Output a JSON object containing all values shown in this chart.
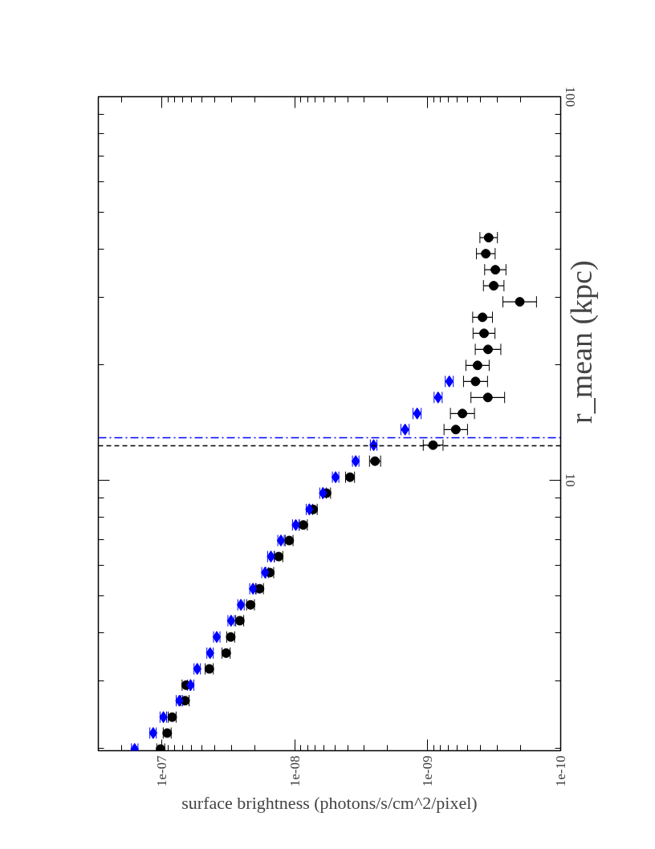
{
  "chart_data": {
    "type": "scatter",
    "xlabel": "surface brightness (photons/s/cm^2/pixel)",
    "ylabel": "r_mean (kpc)",
    "log": "xy",
    "grid": false,
    "xlim": [
      3e-07,
      1e-10
    ],
    "xticks": [
      {
        "value": 1e-07,
        "label": "1e-07"
      },
      {
        "value": 1e-08,
        "label": "1e-08"
      },
      {
        "value": 1e-09,
        "label": "1e-09"
      },
      {
        "value": 1e-10,
        "label": "1e-10"
      },
      {
        "value": 2e-07,
        "label": null
      },
      {
        "value": 3e-07,
        "label": null
      },
      {
        "value": 2e-08,
        "label": null
      },
      {
        "value": 3e-08,
        "label": null
      },
      {
        "value": 4e-08,
        "label": null
      },
      {
        "value": 5e-08,
        "label": null
      },
      {
        "value": 6e-08,
        "label": null
      },
      {
        "value": 7e-08,
        "label": null
      },
      {
        "value": 8e-08,
        "label": null
      },
      {
        "value": 9e-08,
        "label": null
      },
      {
        "value": 2e-09,
        "label": null
      },
      {
        "value": 3e-09,
        "label": null
      },
      {
        "value": 4e-09,
        "label": null
      },
      {
        "value": 5e-09,
        "label": null
      },
      {
        "value": 6e-09,
        "label": null
      },
      {
        "value": 7e-09,
        "label": null
      },
      {
        "value": 8e-09,
        "label": null
      },
      {
        "value": 9e-09,
        "label": null
      },
      {
        "value": 2e-10,
        "label": null
      },
      {
        "value": 3e-10,
        "label": null
      },
      {
        "value": 4e-10,
        "label": null
      },
      {
        "value": 5e-10,
        "label": null
      },
      {
        "value": 6e-10,
        "label": null
      },
      {
        "value": 7e-10,
        "label": null
      },
      {
        "value": 8e-10,
        "label": null
      },
      {
        "value": 9e-10,
        "label": null
      }
    ],
    "ylim": [
      1.97,
      100
    ],
    "yticks": [
      10,
      100,
      {
        "value": 2,
        "label": null
      },
      {
        "value": 3,
        "label": null
      },
      {
        "value": 4,
        "label": null
      },
      {
        "value": 5,
        "label": null
      },
      {
        "value": 6,
        "label": null
      },
      {
        "value": 7,
        "label": null
      },
      {
        "value": 8,
        "label": null
      },
      {
        "value": 9,
        "label": null
      },
      {
        "value": 20,
        "label": null
      },
      {
        "value": 30,
        "label": null
      },
      {
        "value": 40,
        "label": null
      },
      {
        "value": 50,
        "label": null
      },
      {
        "value": 60,
        "label": null
      },
      {
        "value": 70,
        "label": null
      },
      {
        "value": 80,
        "label": null
      },
      {
        "value": 90,
        "label": null
      }
    ],
    "series": [
      {
        "color": "#000000",
        "marker": "circle",
        "x": [
          1.02e-07,
          9.1e-08,
          8.35e-08,
          6.68e-08,
          6.56e-08,
          4.39e-08,
          3.28e-08,
          3.03e-08,
          2.59e-08,
          2.15e-08,
          1.84e-08,
          1.54e-08,
          1.32e-08,
          1.1e-08,
          8.62e-09,
          7.27e-09,
          5.77e-09,
          3.84e-09,
          2.49e-09,
          9.12e-10,
          6.15e-10,
          5.48e-10,
          3.53e-10,
          4.37e-10,
          4.22e-10,
          3.52e-10,
          3.77e-10,
          3.87e-10,
          2.03e-10,
          3.19e-10,
          3.1e-10,
          3.66e-10,
          3.48e-10
        ],
        "values": [
          1.99,
          2.19,
          2.41,
          2.66,
          2.92,
          3.22,
          3.54,
          3.9,
          4.3,
          4.73,
          5.21,
          5.74,
          6.32,
          6.96,
          7.64,
          8.39,
          9.25,
          10.18,
          11.21,
          12.34,
          13.55,
          14.92,
          16.43,
          18.09,
          19.92,
          21.93,
          24.15,
          26.59,
          29.18,
          32.14,
          35.38,
          38.96,
          42.9
        ],
        "xerrors": [
          [
            9.5e-08,
            1.09e-07
          ],
          [
            8.5e-08,
            9.75e-08
          ],
          [
            7.8e-08,
            8.95e-08
          ],
          [
            6.23e-08,
            7.16e-08
          ],
          [
            6.12e-08,
            7.03e-08
          ],
          [
            4.1e-08,
            4.71e-08
          ],
          [
            3.06e-08,
            3.52e-08
          ],
          [
            2.83e-08,
            3.25e-08
          ],
          [
            2.42e-08,
            2.78e-08
          ],
          [
            2.01e-08,
            2.3e-08
          ],
          [
            1.72e-08,
            1.97e-08
          ],
          [
            1.44e-08,
            1.65e-08
          ],
          [
            1.23e-08,
            1.42e-08
          ],
          [
            1.03e-08,
            1.18e-08
          ],
          [
            8.04e-09,
            9.24e-09
          ],
          [
            6.78e-09,
            7.79e-09
          ],
          [
            5.38e-09,
            6.19e-09
          ],
          [
            3.55e-09,
            4.15e-09
          ],
          [
            2.26e-09,
            2.74e-09
          ],
          [
            7.67e-10,
            1.08e-09
          ],
          [
            5.02e-10,
            7.54e-10
          ],
          [
            4.45e-10,
            6.75e-10
          ],
          [
            2.64e-10,
            4.73e-10
          ],
          [
            3.55e-10,
            5.38e-10
          ],
          [
            3.45e-10,
            5.16e-10
          ],
          [
            2.82e-10,
            4.39e-10
          ],
          [
            3.12e-10,
            4.56e-10
          ],
          [
            3.26e-10,
            4.59e-10
          ],
          [
            1.52e-10,
            2.72e-10
          ],
          [
            2.67e-10,
            3.81e-10
          ],
          [
            2.58e-10,
            3.73e-10
          ],
          [
            3.11e-10,
            4.3e-10
          ],
          [
            2.99e-10,
            4.05e-10
          ]
        ]
      },
      {
        "color": "#0000ff",
        "marker": "diamond",
        "x": [
          1.6e-07,
          1.16e-07,
          9.72e-08,
          7.37e-08,
          6.07e-08,
          5.41e-08,
          4.33e-08,
          3.86e-08,
          3.01e-08,
          2.54e-08,
          2.06e-08,
          1.67e-08,
          1.51e-08,
          1.27e-08,
          9.82e-09,
          7.76e-09,
          6.13e-09,
          4.93e-09,
          3.48e-09,
          2.55e-09,
          1.48e-09,
          1.2e-09,
          8.35e-10,
          6.88e-10
        ],
        "values": [
          1.99,
          2.19,
          2.41,
          2.66,
          2.92,
          3.22,
          3.54,
          3.9,
          4.3,
          4.73,
          5.21,
          5.74,
          6.32,
          6.96,
          7.64,
          8.39,
          9.25,
          10.18,
          11.21,
          12.34,
          13.55,
          14.92,
          16.43,
          18.09
        ],
        "xerrors": [
          [
            1.51e-07,
            1.69e-07
          ],
          [
            1.1e-07,
            1.23e-07
          ],
          [
            9.2e-08,
            1.03e-07
          ],
          [
            6.97e-08,
            7.79e-08
          ],
          [
            5.74e-08,
            6.42e-08
          ],
          [
            5.12e-08,
            5.72e-08
          ],
          [
            4.1e-08,
            4.58e-08
          ],
          [
            3.65e-08,
            4.08e-08
          ],
          [
            2.85e-08,
            3.18e-08
          ],
          [
            2.4e-08,
            2.68e-08
          ],
          [
            1.95e-08,
            2.18e-08
          ],
          [
            1.58e-08,
            1.77e-08
          ],
          [
            1.43e-08,
            1.6e-08
          ],
          [
            1.2e-08,
            1.34e-08
          ],
          [
            9.29e-09,
            1.04e-08
          ],
          [
            7.34e-09,
            8.2e-09
          ],
          [
            5.8e-09,
            6.48e-09
          ],
          [
            4.66e-09,
            5.21e-09
          ],
          [
            3.29e-09,
            3.68e-09
          ],
          [
            2.41e-09,
            2.7e-09
          ],
          [
            1.38e-09,
            1.59e-09
          ],
          [
            1.12e-09,
            1.29e-09
          ],
          [
            7.79e-10,
            8.95e-10
          ],
          [
            6.42e-10,
            7.38e-10
          ]
        ]
      }
    ],
    "ref_lines": [
      {
        "axis": "y",
        "value": 12.3,
        "color": "#000000",
        "line_style": "dashed"
      },
      {
        "axis": "y",
        "value": 12.9,
        "color": "#0000ff",
        "line_style": "dashdot"
      }
    ]
  }
}
